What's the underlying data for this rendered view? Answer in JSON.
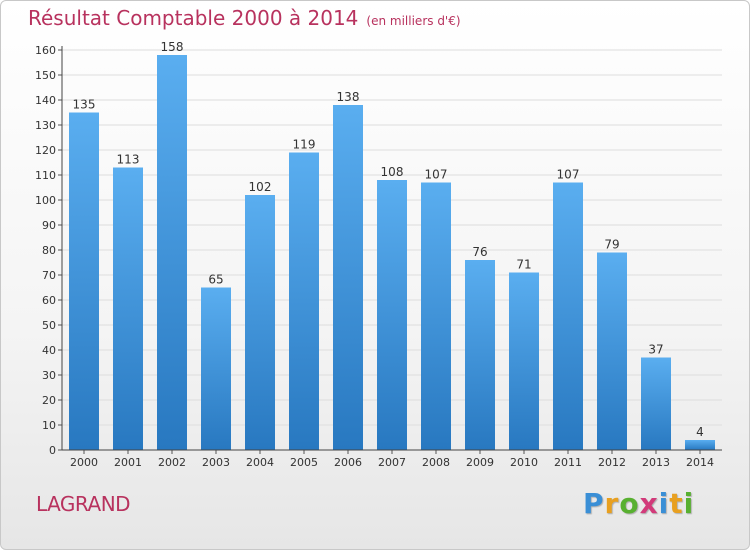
{
  "header": {
    "title": "Résultat Comptable 2000 à 2014",
    "subtitle": "(en milliers d'€)"
  },
  "footer": {
    "place": "LAGRAND",
    "logo_letters": [
      "P",
      "r",
      "o",
      "x",
      "i",
      "t",
      "i"
    ],
    "logo_colors": [
      "#3a8fd6",
      "#e8a020",
      "#58b030",
      "#d23a7a",
      "#3a8fd6",
      "#e8a020",
      "#58b030"
    ]
  },
  "colors": {
    "accent": "#b8325e",
    "bar_top": "#5aaef0",
    "bar_bottom": "#2878c0",
    "grid": "#dddddd"
  },
  "chart_data": {
    "type": "bar",
    "title": "Résultat Comptable 2000 à 2014",
    "xlabel": "",
    "ylabel": "",
    "categories": [
      "2000",
      "2001",
      "2002",
      "2003",
      "2004",
      "2005",
      "2006",
      "2007",
      "2008",
      "2009",
      "2010",
      "2011",
      "2012",
      "2013",
      "2014"
    ],
    "values": [
      135,
      113,
      158,
      65,
      102,
      119,
      138,
      108,
      107,
      76,
      71,
      107,
      79,
      37,
      4
    ],
    "ylim": [
      0,
      160
    ],
    "yticks": [
      0,
      10,
      20,
      30,
      40,
      50,
      60,
      70,
      80,
      90,
      100,
      110,
      120,
      130,
      140,
      150,
      160
    ],
    "grid": true,
    "data_labels": true
  }
}
